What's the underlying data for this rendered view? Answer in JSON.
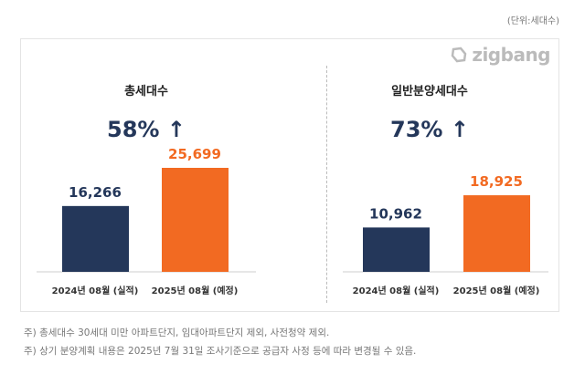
{
  "unit_label": "(단위:세대수)",
  "logo_text": "zigbang",
  "colors": {
    "actual": "#24375a",
    "planned": "#f26a22",
    "title": "#24375a"
  },
  "chart_data": [
    {
      "type": "bar",
      "title": "총세대수",
      "change": "58% ↑",
      "categories": [
        "2024년 08월 (실적)",
        "2025년 08월 (예정)"
      ],
      "values": [
        16266,
        25699
      ],
      "value_labels": [
        "16,266",
        "25,699"
      ],
      "ylim": [
        0,
        30000
      ]
    },
    {
      "type": "bar",
      "title": "일반분양세대수",
      "change": "73% ↑",
      "categories": [
        "2024년 08월 (실적)",
        "2025년 08월 (예정)"
      ],
      "values": [
        10962,
        18925
      ],
      "value_labels": [
        "10,962",
        "18,925"
      ],
      "ylim": [
        0,
        30000
      ]
    }
  ],
  "notes": [
    "주) 총세대수 30세대 미만 아파트단지, 임대아파트단지 제외, 사전청약 제외.",
    "주) 상기 분양계획 내용은 2025년 7월 31일 조사기준으로 공급자 사정 등에 따라 변경될 수 있음."
  ]
}
